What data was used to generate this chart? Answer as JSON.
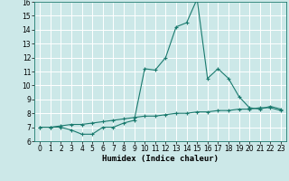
{
  "xlabel": "Humidex (Indice chaleur)",
  "x_line1": [
    0,
    1,
    2,
    3,
    4,
    5,
    6,
    7,
    8,
    9,
    10,
    11,
    12,
    13,
    14,
    15,
    16,
    17,
    18,
    19,
    20,
    21,
    22,
    23
  ],
  "y_line1": [
    7.0,
    7.0,
    7.0,
    6.8,
    6.5,
    6.5,
    7.0,
    7.0,
    7.3,
    7.5,
    11.2,
    11.1,
    12.0,
    14.2,
    14.5,
    16.2,
    10.5,
    11.2,
    10.5,
    9.2,
    8.4,
    8.3,
    8.5,
    8.3
  ],
  "x_line2": [
    0,
    1,
    2,
    3,
    4,
    5,
    6,
    7,
    8,
    9,
    10,
    11,
    12,
    13,
    14,
    15,
    16,
    17,
    18,
    19,
    20,
    21,
    22,
    23
  ],
  "y_line2": [
    7.0,
    7.0,
    7.1,
    7.2,
    7.2,
    7.3,
    7.4,
    7.5,
    7.6,
    7.7,
    7.8,
    7.8,
    7.9,
    8.0,
    8.0,
    8.1,
    8.1,
    8.2,
    8.2,
    8.3,
    8.3,
    8.4,
    8.4,
    8.2
  ],
  "line_color": "#1a7a6e",
  "bg_color": "#cce8e8",
  "grid_color": "#b0d4d4",
  "ylim": [
    6,
    16
  ],
  "xlim": [
    -0.5,
    23.5
  ],
  "yticks": [
    6,
    7,
    8,
    9,
    10,
    11,
    12,
    13,
    14,
    15,
    16
  ],
  "xticks": [
    0,
    1,
    2,
    3,
    4,
    5,
    6,
    7,
    8,
    9,
    10,
    11,
    12,
    13,
    14,
    15,
    16,
    17,
    18,
    19,
    20,
    21,
    22,
    23
  ],
  "tick_fontsize": 5.5,
  "xlabel_fontsize": 6.5
}
